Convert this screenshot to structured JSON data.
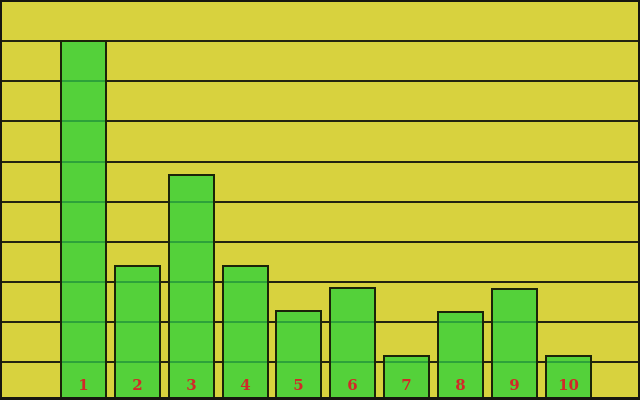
{
  "chart_data": {
    "type": "bar",
    "title": "",
    "xlabel": "",
    "ylabel": "",
    "categories": [
      "1",
      "2",
      "3",
      "4",
      "5",
      "6",
      "7",
      "8",
      "9",
      "10"
    ],
    "values": [
      9.0,
      3.33,
      5.61,
      3.33,
      2.2,
      2.77,
      1.06,
      2.18,
      2.76,
      1.06
    ],
    "ylim": [
      0,
      10
    ],
    "grid": {
      "horizontal_gridlines": 9,
      "gridlines_visible": true,
      "vertical_gridlines": 0
    },
    "legend_position": "none",
    "bar_labels_inside_bottom": true,
    "colors": {
      "background": "#d8d23e",
      "bar_fill": "#54d13a",
      "bar_border": "#1b2408",
      "gridline": "#232310",
      "bar_gridline_overlay": "#2da23a",
      "label_text": "#d22828",
      "frame": "#161610"
    }
  }
}
